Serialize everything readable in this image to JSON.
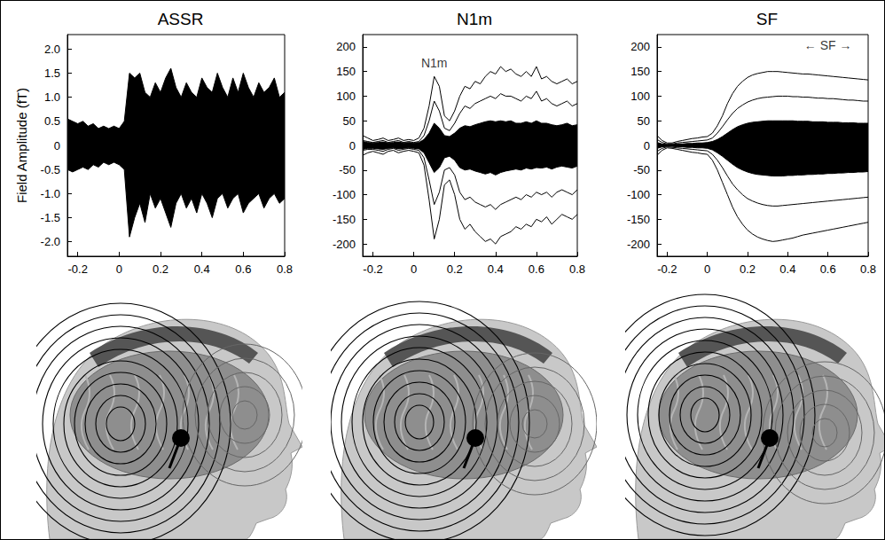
{
  "chart_data": [
    {
      "type": "line",
      "title": "ASSR",
      "y_label": "Field Amplitude (fT)",
      "x": [
        -0.25,
        -0.225,
        -0.2,
        -0.175,
        -0.15,
        -0.125,
        -0.1,
        -0.075,
        -0.05,
        -0.025,
        0,
        0.025,
        0.05,
        0.075,
        0.1,
        0.125,
        0.15,
        0.175,
        0.2,
        0.225,
        0.25,
        0.275,
        0.3,
        0.325,
        0.35,
        0.375,
        0.4,
        0.425,
        0.45,
        0.475,
        0.5,
        0.525,
        0.55,
        0.575,
        0.6,
        0.625,
        0.65,
        0.675,
        0.7,
        0.725,
        0.75,
        0.775,
        0.8
      ],
      "series": [
        {
          "type": "area",
          "color": "#000000",
          "values": [
            0.55,
            0.5,
            0.45,
            0.5,
            0.4,
            0.45,
            0.35,
            0.4,
            0.35,
            0.4,
            0.35,
            0.5,
            1.5,
            1.4,
            1.5,
            1.1,
            1.0,
            1.3,
            1.1,
            1.4,
            1.6,
            1.2,
            1.0,
            1.3,
            1.1,
            1.0,
            1.4,
            1.2,
            1.1,
            1.5,
            1.2,
            1.0,
            1.4,
            1.1,
            1.5,
            1.2,
            1.0,
            1.3,
            1.1,
            1.2,
            1.4,
            1.0,
            1.1
          ]
        },
        {
          "type": "area",
          "color": "#000000",
          "values": [
            -0.5,
            -0.55,
            -0.5,
            -0.45,
            -0.5,
            -0.4,
            -0.45,
            -0.35,
            -0.4,
            -0.35,
            -0.4,
            -0.5,
            -1.9,
            -1.5,
            -1.2,
            -1.6,
            -1.0,
            -1.3,
            -1.1,
            -1.4,
            -1.7,
            -1.2,
            -1.0,
            -1.3,
            -1.1,
            -1.4,
            -1.0,
            -1.2,
            -1.5,
            -1.1,
            -1.0,
            -1.3,
            -1.1,
            -1.0,
            -1.4,
            -1.2,
            -1.1,
            -1.0,
            -1.3,
            -1.1,
            -1.0,
            -1.2,
            -1.1
          ]
        }
      ],
      "xlim": [
        -0.25,
        0.8
      ],
      "xticks": [
        -0.2,
        0,
        0.2,
        0.4,
        0.6,
        0.8
      ],
      "ylim": [
        -2.3,
        2.3
      ],
      "yticks": [
        {
          "value": -2,
          "label": "-2.0"
        },
        -1.5,
        {
          "value": -1,
          "label": "-1.0"
        },
        -0.5,
        0,
        0.5,
        {
          "value": 1,
          "label": "1.0"
        },
        1.5,
        {
          "value": 2,
          "label": "2.0"
        }
      ],
      "grid": false
    },
    {
      "type": "line",
      "title": "N1m",
      "annotations": [
        {
          "text": "N1m",
          "x": 0.1,
          "y": 168
        }
      ],
      "x": [
        -0.25,
        -0.225,
        -0.2,
        -0.175,
        -0.15,
        -0.125,
        -0.1,
        -0.075,
        -0.05,
        -0.025,
        0,
        0.025,
        0.05,
        0.075,
        0.1,
        0.125,
        0.15,
        0.175,
        0.2,
        0.225,
        0.25,
        0.275,
        0.3,
        0.325,
        0.35,
        0.375,
        0.4,
        0.425,
        0.45,
        0.475,
        0.5,
        0.525,
        0.55,
        0.575,
        0.6,
        0.625,
        0.65,
        0.675,
        0.7,
        0.725,
        0.75,
        0.775,
        0.8
      ],
      "series": [
        {
          "type": "line",
          "color": "#000000",
          "values": [
            20,
            15,
            10,
            12,
            15,
            10,
            12,
            15,
            10,
            12,
            10,
            15,
            35,
            80,
            140,
            120,
            60,
            50,
            70,
            100,
            120,
            115,
            130,
            125,
            140,
            150,
            145,
            160,
            150,
            155,
            145,
            140,
            150,
            140,
            160,
            135,
            140,
            130,
            125,
            130,
            135,
            125,
            130
          ]
        },
        {
          "type": "line",
          "color": "#000000",
          "values": [
            10,
            8,
            6,
            8,
            10,
            6,
            8,
            10,
            6,
            8,
            6,
            8,
            20,
            50,
            90,
            70,
            35,
            30,
            45,
            65,
            80,
            75,
            85,
            90,
            95,
            100,
            95,
            105,
            100,
            100,
            95,
            90,
            100,
            95,
            110,
            90,
            95,
            85,
            80,
            85,
            90,
            80,
            85
          ]
        },
        {
          "type": "area",
          "color": "#000000",
          "values": [
            8,
            6,
            5,
            6,
            7,
            5,
            6,
            7,
            5,
            6,
            5,
            6,
            12,
            25,
            45,
            35,
            20,
            18,
            25,
            35,
            40,
            38,
            42,
            45,
            48,
            50,
            48,
            50,
            48,
            50,
            45,
            45,
            48,
            45,
            50,
            45,
            45,
            42,
            40,
            42,
            45,
            40,
            42
          ]
        },
        {
          "type": "area",
          "color": "#000000",
          "values": [
            -8,
            -6,
            -6,
            -7,
            -8,
            -6,
            -5,
            -7,
            -6,
            -5,
            -6,
            -7,
            -15,
            -35,
            -55,
            -45,
            -25,
            -22,
            -30,
            -45,
            -50,
            -48,
            -52,
            -55,
            -58,
            -55,
            -60,
            -55,
            -52,
            -50,
            -48,
            -50,
            -46,
            -48,
            -45,
            -46,
            -44,
            -48,
            -44,
            -42,
            -44,
            -46,
            -42
          ]
        },
        {
          "type": "line",
          "color": "#000000",
          "values": [
            -10,
            -8,
            -8,
            -10,
            -12,
            -8,
            -6,
            -10,
            -8,
            -6,
            -8,
            -10,
            -25,
            -70,
            -120,
            -95,
            -50,
            -45,
            -60,
            -95,
            -110,
            -105,
            -115,
            -120,
            -125,
            -120,
            -130,
            -120,
            -115,
            -110,
            -105,
            -110,
            -100,
            -105,
            -95,
            -100,
            -95,
            -105,
            -95,
            -90,
            -95,
            -100,
            -90
          ]
        },
        {
          "type": "line",
          "color": "#000000",
          "values": [
            -20,
            -15,
            -12,
            -15,
            -18,
            -12,
            -10,
            -15,
            -12,
            -10,
            -12,
            -15,
            -40,
            -110,
            -190,
            -150,
            -80,
            -70,
            -100,
            -150,
            -170,
            -160,
            -175,
            -185,
            -195,
            -190,
            -200,
            -185,
            -180,
            -175,
            -165,
            -170,
            -160,
            -165,
            -150,
            -155,
            -145,
            -160,
            -150,
            -140,
            -145,
            -150,
            -140
          ]
        }
      ],
      "xlim": [
        -0.25,
        0.8
      ],
      "xticks": [
        -0.2,
        0,
        0.2,
        0.4,
        0.6,
        0.8
      ],
      "ylim": [
        -225,
        225
      ],
      "yticks": [
        -200,
        -150,
        -100,
        -50,
        0,
        50,
        100,
        150,
        200
      ],
      "grid": false
    },
    {
      "type": "line",
      "title": "SF",
      "annotations": [
        {
          "text": "← SF →",
          "x": 0.6,
          "y": 203
        }
      ],
      "x": [
        -0.25,
        -0.225,
        -0.2,
        -0.175,
        -0.15,
        -0.125,
        -0.1,
        -0.075,
        -0.05,
        -0.025,
        0,
        0.025,
        0.05,
        0.075,
        0.1,
        0.125,
        0.15,
        0.175,
        0.2,
        0.225,
        0.25,
        0.275,
        0.3,
        0.325,
        0.35,
        0.375,
        0.4,
        0.425,
        0.45,
        0.475,
        0.5,
        0.525,
        0.55,
        0.575,
        0.6,
        0.625,
        0.65,
        0.675,
        0.7,
        0.725,
        0.75,
        0.775,
        0.8
      ],
      "series": [
        {
          "type": "line",
          "color": "#000000",
          "values": [
            20,
            10,
            5,
            5,
            8,
            10,
            12,
            14,
            15,
            17,
            18,
            25,
            40,
            60,
            85,
            105,
            120,
            130,
            138,
            143,
            146,
            148,
            150,
            150,
            150,
            149,
            148,
            147,
            146,
            145,
            145,
            144,
            143,
            142,
            141,
            140,
            139,
            138,
            137,
            136,
            135,
            134,
            133
          ]
        },
        {
          "type": "line",
          "color": "#000000",
          "values": [
            12,
            6,
            3,
            3,
            5,
            6,
            7,
            8,
            9,
            10,
            11,
            15,
            25,
            38,
            52,
            65,
            75,
            82,
            88,
            92,
            95,
            97,
            98,
            99,
            100,
            100,
            100,
            99,
            99,
            98,
            98,
            97,
            96,
            96,
            95,
            95,
            94,
            93,
            92,
            92,
            91,
            90,
            90
          ]
        },
        {
          "type": "area",
          "color": "#000000",
          "values": [
            6,
            3,
            2,
            2,
            3,
            3,
            4,
            4,
            5,
            5,
            6,
            8,
            12,
            18,
            25,
            32,
            38,
            42,
            45,
            47,
            48,
            49,
            50,
            50,
            50,
            50,
            50,
            50,
            49,
            49,
            49,
            48,
            48,
            48,
            47,
            47,
            47,
            46,
            46,
            46,
            45,
            45,
            45
          ]
        },
        {
          "type": "area",
          "color": "#000000",
          "values": [
            -6,
            -3,
            -2,
            -2,
            -3,
            -3,
            -4,
            -4,
            -5,
            -5,
            -6,
            -9,
            -15,
            -22,
            -30,
            -38,
            -45,
            -50,
            -54,
            -57,
            -59,
            -60,
            -61,
            -62,
            -62,
            -62,
            -61,
            -61,
            -60,
            -60,
            -59,
            -59,
            -58,
            -58,
            -57,
            -57,
            -56,
            -56,
            -55,
            -55,
            -54,
            -54,
            -53
          ]
        },
        {
          "type": "line",
          "color": "#000000",
          "values": [
            -12,
            -6,
            -3,
            -4,
            -5,
            -6,
            -7,
            -8,
            -9,
            -10,
            -11,
            -18,
            -30,
            -45,
            -62,
            -78,
            -90,
            -100,
            -108,
            -113,
            -117,
            -120,
            -122,
            -123,
            -123,
            -122,
            -121,
            -120,
            -119,
            -118,
            -117,
            -116,
            -115,
            -114,
            -113,
            -112,
            -111,
            -110,
            -109,
            -108,
            -107,
            -106,
            -105
          ]
        },
        {
          "type": "line",
          "color": "#000000",
          "values": [
            -20,
            -10,
            -5,
            -6,
            -8,
            -10,
            -12,
            -14,
            -15,
            -17,
            -18,
            -30,
            -50,
            -75,
            -100,
            -125,
            -145,
            -160,
            -172,
            -180,
            -186,
            -190,
            -193,
            -195,
            -194,
            -192,
            -190,
            -188,
            -185,
            -182,
            -180,
            -178,
            -176,
            -174,
            -172,
            -170,
            -168,
            -166,
            -164,
            -162,
            -160,
            -158,
            -156
          ]
        }
      ],
      "xlim": [
        -0.25,
        0.8
      ],
      "xticks": [
        -0.2,
        0,
        0.2,
        0.4,
        0.6,
        0.8
      ],
      "ylim": [
        -225,
        225
      ],
      "yticks": [
        -200,
        -150,
        -100,
        -50,
        0,
        50,
        100,
        150,
        200
      ],
      "grid": false
    }
  ]
}
